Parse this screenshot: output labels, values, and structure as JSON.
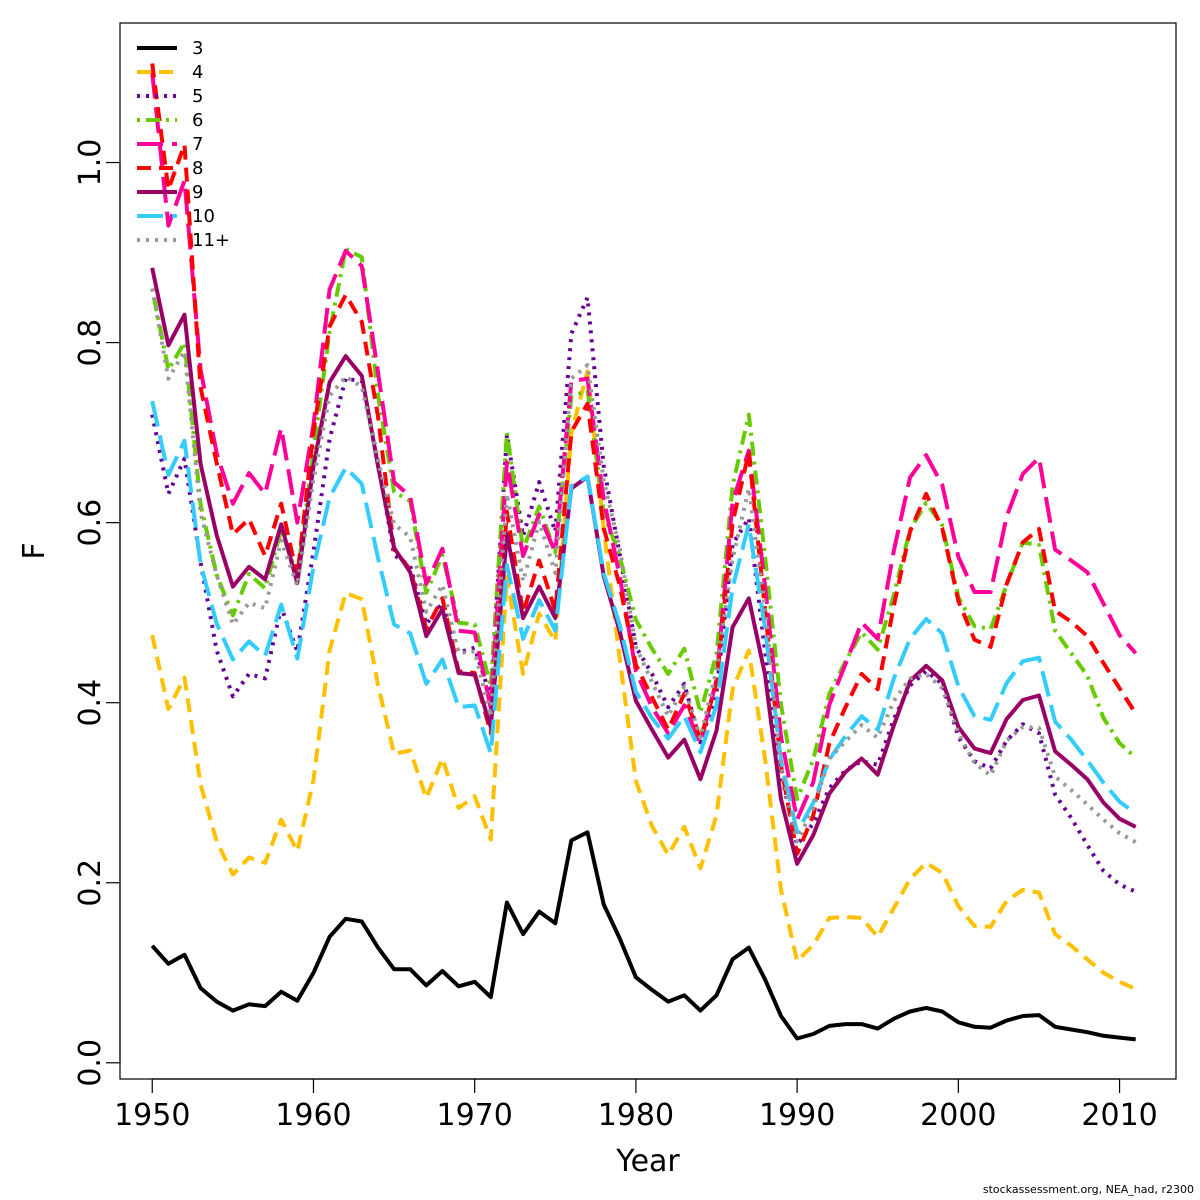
{
  "chart_data": {
    "type": "line",
    "xlabel": "Year",
    "ylabel": "F",
    "xlim": [
      1948,
      2013.5
    ],
    "ylim": [
      -0.018,
      1.155
    ],
    "xticks": [
      1950,
      1960,
      1970,
      1980,
      1990,
      2000,
      2010
    ],
    "yticks": [
      0.0,
      0.2,
      0.4,
      0.6,
      0.8,
      1.0
    ],
    "ytick_labels": [
      "0.0",
      "0.2",
      "0.4",
      "0.6",
      "0.8",
      "1.0"
    ],
    "grid": false,
    "legend_position": "top-left",
    "x": [
      1950,
      1951,
      1952,
      1953,
      1954,
      1955,
      1956,
      1957,
      1958,
      1959,
      1960,
      1961,
      1962,
      1963,
      1964,
      1965,
      1966,
      1967,
      1968,
      1969,
      1970,
      1971,
      1972,
      1973,
      1974,
      1975,
      1976,
      1977,
      1978,
      1979,
      1980,
      1981,
      1982,
      1983,
      1984,
      1985,
      1986,
      1987,
      1988,
      1989,
      1990,
      1991,
      1992,
      1993,
      1994,
      1995,
      1996,
      1997,
      1998,
      1999,
      2000,
      2001,
      2002,
      2003,
      2004,
      2005,
      2006,
      2007,
      2008,
      2009,
      2010,
      2011
    ],
    "series": [
      {
        "name": "3",
        "color": "#000000",
        "dash": "solid",
        "values": [
          0.13,
          0.11,
          0.12,
          0.083,
          0.068,
          0.058,
          0.065,
          0.063,
          0.079,
          0.069,
          0.1,
          0.14,
          0.16,
          0.157,
          0.128,
          0.104,
          0.104,
          0.086,
          0.102,
          0.085,
          0.09,
          0.073,
          0.178,
          0.143,
          0.168,
          0.155,
          0.247,
          0.256,
          0.176,
          0.138,
          0.095,
          0.081,
          0.068,
          0.075,
          0.058,
          0.075,
          0.115,
          0.128,
          0.093,
          0.052,
          0.027,
          0.032,
          0.041,
          0.043,
          0.043,
          0.038,
          0.049,
          0.057,
          0.061,
          0.057,
          0.045,
          0.04,
          0.039,
          0.047,
          0.052,
          0.053,
          0.04,
          0.037,
          0.034,
          0.03,
          0.028,
          0.026
        ]
      },
      {
        "name": "4",
        "color": "#FFC000",
        "dash": "dashed",
        "values": [
          0.475,
          0.393,
          0.428,
          0.309,
          0.246,
          0.209,
          0.228,
          0.222,
          0.27,
          0.235,
          0.314,
          0.458,
          0.522,
          0.515,
          0.42,
          0.343,
          0.347,
          0.294,
          0.338,
          0.283,
          0.296,
          0.248,
          0.54,
          0.432,
          0.499,
          0.468,
          0.7,
          0.768,
          0.593,
          0.448,
          0.313,
          0.263,
          0.231,
          0.262,
          0.216,
          0.275,
          0.415,
          0.458,
          0.339,
          0.192,
          0.113,
          0.131,
          0.161,
          0.162,
          0.161,
          0.14,
          0.172,
          0.204,
          0.222,
          0.211,
          0.174,
          0.152,
          0.151,
          0.18,
          0.192,
          0.189,
          0.143,
          0.13,
          0.115,
          0.1,
          0.09,
          0.082
        ]
      },
      {
        "name": "5",
        "color": "#660099",
        "dash": "dotted",
        "values": [
          0.72,
          0.632,
          0.671,
          0.556,
          0.458,
          0.407,
          0.432,
          0.427,
          0.506,
          0.457,
          0.568,
          0.693,
          0.76,
          0.757,
          0.669,
          0.564,
          0.552,
          0.487,
          0.511,
          0.456,
          0.461,
          0.406,
          0.698,
          0.585,
          0.645,
          0.59,
          0.81,
          0.85,
          0.663,
          0.564,
          0.462,
          0.432,
          0.395,
          0.421,
          0.356,
          0.412,
          0.576,
          0.605,
          0.458,
          0.322,
          0.242,
          0.266,
          0.305,
          0.325,
          0.335,
          0.331,
          0.382,
          0.419,
          0.435,
          0.421,
          0.362,
          0.335,
          0.327,
          0.358,
          0.376,
          0.366,
          0.298,
          0.272,
          0.242,
          0.213,
          0.198,
          0.19
        ]
      },
      {
        "name": "6",
        "color": "#66CC00",
        "dash": "dotdash",
        "values": [
          0.86,
          0.77,
          0.8,
          0.62,
          0.542,
          0.497,
          0.543,
          0.527,
          0.592,
          0.541,
          0.68,
          0.812,
          0.904,
          0.895,
          0.742,
          0.634,
          0.624,
          0.522,
          0.564,
          0.489,
          0.487,
          0.418,
          0.7,
          0.57,
          0.618,
          0.567,
          0.74,
          0.747,
          0.611,
          0.562,
          0.492,
          0.46,
          0.432,
          0.46,
          0.389,
          0.454,
          0.641,
          0.72,
          0.564,
          0.398,
          0.293,
          0.337,
          0.41,
          0.446,
          0.478,
          0.459,
          0.52,
          0.592,
          0.622,
          0.597,
          0.517,
          0.485,
          0.482,
          0.531,
          0.578,
          0.575,
          0.48,
          0.455,
          0.43,
          0.383,
          0.355,
          0.339
        ]
      },
      {
        "name": "7",
        "color": "#FF0099",
        "dash": "longdash",
        "values": [
          1.1,
          0.93,
          0.98,
          0.77,
          0.677,
          0.621,
          0.655,
          0.632,
          0.705,
          0.6,
          0.709,
          0.859,
          0.902,
          0.885,
          0.767,
          0.645,
          0.629,
          0.532,
          0.571,
          0.48,
          0.478,
          0.394,
          0.667,
          0.563,
          0.609,
          0.567,
          0.757,
          0.76,
          0.626,
          0.54,
          0.435,
          0.395,
          0.366,
          0.397,
          0.355,
          0.425,
          0.623,
          0.68,
          0.531,
          0.362,
          0.27,
          0.312,
          0.398,
          0.443,
          0.489,
          0.471,
          0.569,
          0.65,
          0.675,
          0.642,
          0.562,
          0.523,
          0.523,
          0.607,
          0.654,
          0.672,
          0.57,
          0.558,
          0.545,
          0.51,
          0.475,
          0.455
        ]
      },
      {
        "name": "8",
        "color": "#FF0000",
        "dash": "dashed",
        "values": [
          1.11,
          0.97,
          1.02,
          0.75,
          0.666,
          0.587,
          0.604,
          0.563,
          0.621,
          0.54,
          0.701,
          0.818,
          0.853,
          0.823,
          0.718,
          0.57,
          0.548,
          0.482,
          0.516,
          0.435,
          0.433,
          0.366,
          0.612,
          0.5,
          0.558,
          0.502,
          0.701,
          0.732,
          0.594,
          0.53,
          0.442,
          0.406,
          0.37,
          0.41,
          0.359,
          0.422,
          0.6,
          0.678,
          0.505,
          0.33,
          0.232,
          0.275,
          0.355,
          0.395,
          0.432,
          0.415,
          0.508,
          0.59,
          0.632,
          0.594,
          0.513,
          0.47,
          0.462,
          0.532,
          0.578,
          0.593,
          0.502,
          0.49,
          0.474,
          0.444,
          0.416,
          0.388
        ]
      },
      {
        "name": "9",
        "color": "#990066",
        "dash": "solid",
        "values": [
          0.883,
          0.797,
          0.831,
          0.665,
          0.586,
          0.529,
          0.551,
          0.537,
          0.598,
          0.533,
          0.663,
          0.756,
          0.785,
          0.763,
          0.663,
          0.572,
          0.545,
          0.474,
          0.504,
          0.433,
          0.431,
          0.373,
          0.587,
          0.494,
          0.529,
          0.494,
          0.638,
          0.651,
          0.541,
          0.479,
          0.402,
          0.37,
          0.339,
          0.359,
          0.315,
          0.369,
          0.484,
          0.516,
          0.432,
          0.293,
          0.221,
          0.253,
          0.299,
          0.323,
          0.338,
          0.32,
          0.375,
          0.424,
          0.441,
          0.425,
          0.373,
          0.349,
          0.344,
          0.382,
          0.403,
          0.408,
          0.346,
          0.331,
          0.315,
          0.289,
          0.271,
          0.262
        ]
      },
      {
        "name": "10",
        "color": "#33CCFF",
        "dash": "longdash",
        "values": [
          0.735,
          0.653,
          0.691,
          0.554,
          0.488,
          0.448,
          0.468,
          0.452,
          0.509,
          0.449,
          0.551,
          0.628,
          0.661,
          0.643,
          0.561,
          0.487,
          0.477,
          0.421,
          0.448,
          0.395,
          0.397,
          0.344,
          0.553,
          0.471,
          0.514,
          0.48,
          0.641,
          0.651,
          0.544,
          0.486,
          0.412,
          0.383,
          0.36,
          0.385,
          0.345,
          0.397,
          0.528,
          0.598,
          0.484,
          0.336,
          0.256,
          0.289,
          0.337,
          0.363,
          0.385,
          0.37,
          0.427,
          0.471,
          0.493,
          0.477,
          0.418,
          0.385,
          0.381,
          0.422,
          0.446,
          0.45,
          0.379,
          0.359,
          0.336,
          0.311,
          0.29,
          0.277
        ]
      },
      {
        "name": "11+",
        "color": "#999999",
        "dash": "dotted",
        "values": [
          0.86,
          0.76,
          0.79,
          0.61,
          0.542,
          0.487,
          0.511,
          0.505,
          0.58,
          0.53,
          0.648,
          0.741,
          0.762,
          0.751,
          0.669,
          0.598,
          0.584,
          0.501,
          0.531,
          0.455,
          0.457,
          0.385,
          0.632,
          0.535,
          0.601,
          0.544,
          0.76,
          0.775,
          0.647,
          0.571,
          0.462,
          0.423,
          0.385,
          0.418,
          0.361,
          0.437,
          0.56,
          0.638,
          0.507,
          0.328,
          0.246,
          0.283,
          0.338,
          0.357,
          0.375,
          0.361,
          0.402,
          0.427,
          0.432,
          0.416,
          0.366,
          0.333,
          0.319,
          0.358,
          0.373,
          0.372,
          0.318,
          0.303,
          0.287,
          0.27,
          0.255,
          0.245
        ]
      }
    ]
  },
  "footer": {
    "note": "stockassessment.org, NEA_had, r2300"
  }
}
